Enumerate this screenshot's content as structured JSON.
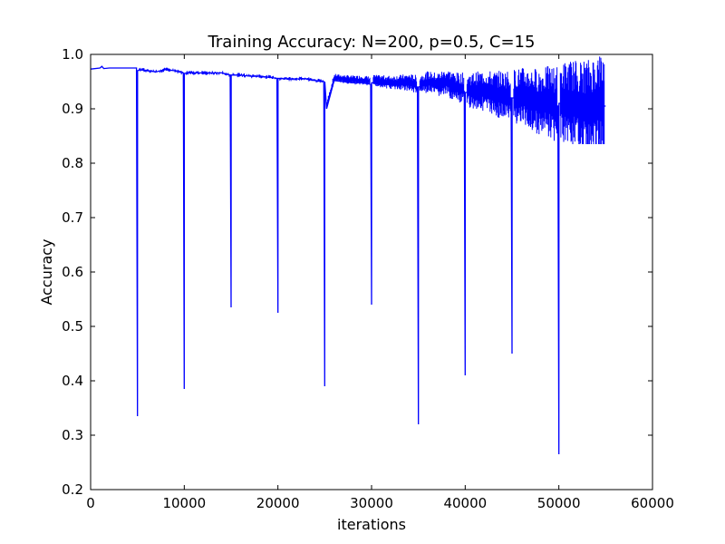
{
  "chart_data": {
    "type": "line",
    "title": "Training Accuracy: N=200, p=0.5, C=15",
    "xlabel": "iterations",
    "ylabel": "Accuracy",
    "xlim": [
      0,
      60000
    ],
    "ylim": [
      0.2,
      1.0
    ],
    "xticks": [
      0,
      10000,
      20000,
      30000,
      40000,
      50000,
      60000
    ],
    "xtick_labels": [
      "0",
      "10000",
      "20000",
      "30000",
      "40000",
      "50000",
      "60000"
    ],
    "yticks": [
      0.2,
      0.3,
      0.4,
      0.5,
      0.6,
      0.7,
      0.8,
      0.9,
      1.0
    ],
    "ytick_labels": [
      "0.2",
      "0.3",
      "0.4",
      "0.5",
      "0.6",
      "0.7",
      "0.8",
      "0.9",
      "1.0"
    ],
    "grid": false,
    "series": [
      {
        "color": "#0000ff",
        "x": [
          0,
          1000,
          1200,
          1400,
          2000,
          3000,
          4900,
          5000,
          5010,
          5300,
          6000,
          7000,
          8000,
          9000,
          9900,
          10000,
          10010,
          10500,
          12000,
          13000,
          14000,
          14900,
          15000,
          15010,
          16000,
          17000,
          18000,
          19000,
          19900,
          20000,
          20010,
          21000,
          22000,
          23000,
          24000,
          24900,
          25000,
          25010,
          25200,
          26000,
          27000,
          28000,
          29000,
          29900,
          30000,
          30010,
          31000,
          32000,
          33000,
          34000,
          34900,
          35000,
          35010,
          36000,
          37000,
          38000,
          39000,
          39900,
          40000,
          40010,
          41000,
          42000,
          43000,
          44000,
          44900,
          45000,
          45010,
          46000,
          47000,
          48000,
          49000,
          49900,
          50000,
          50010,
          51000,
          52000,
          53000,
          54000,
          55000
        ],
        "y": [
          0.973,
          0.975,
          0.978,
          0.974,
          0.975,
          0.975,
          0.975,
          0.335,
          0.97,
          0.972,
          0.97,
          0.968,
          0.972,
          0.97,
          0.966,
          0.385,
          0.965,
          0.966,
          0.966,
          0.966,
          0.966,
          0.962,
          0.535,
          0.962,
          0.962,
          0.96,
          0.96,
          0.958,
          0.956,
          0.525,
          0.956,
          0.955,
          0.955,
          0.955,
          0.952,
          0.95,
          0.39,
          0.95,
          0.9,
          0.952,
          0.95,
          0.948,
          0.948,
          0.945,
          0.54,
          0.948,
          0.946,
          0.944,
          0.944,
          0.944,
          0.94,
          0.32,
          0.94,
          0.945,
          0.94,
          0.945,
          0.935,
          0.932,
          0.41,
          0.93,
          0.93,
          0.93,
          0.925,
          0.922,
          0.92,
          0.45,
          0.92,
          0.92,
          0.915,
          0.91,
          0.91,
          0.905,
          0.265,
          0.91,
          0.91,
          0.905,
          0.9,
          0.905,
          0.905
        ]
      }
    ]
  }
}
